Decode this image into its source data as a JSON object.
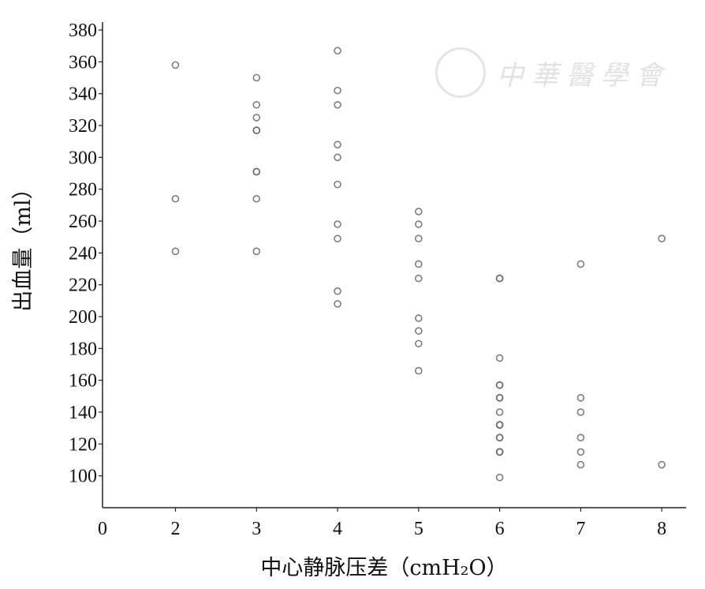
{
  "watermark": {
    "text": "中華醫學會"
  },
  "chart_data": {
    "type": "scatter",
    "title": "",
    "xlabel": "中心静脉压差（cmH₂O）",
    "ylabel": "出血量（ml）",
    "xlim": [
      1.1,
      8.3
    ],
    "ylim": [
      80,
      380
    ],
    "x_origin_label": "0",
    "xticks": [
      2,
      3,
      4,
      5,
      6,
      7,
      8
    ],
    "yticks": [
      100,
      120,
      140,
      160,
      180,
      200,
      220,
      240,
      260,
      280,
      300,
      320,
      340,
      360,
      380
    ],
    "grid": false,
    "marker_color": "#666666",
    "points": [
      [
        2,
        358
      ],
      [
        2,
        274
      ],
      [
        2,
        241
      ],
      [
        3,
        350
      ],
      [
        3,
        333
      ],
      [
        3,
        325
      ],
      [
        3,
        317
      ],
      [
        3,
        317
      ],
      [
        3,
        291
      ],
      [
        3,
        291
      ],
      [
        3,
        274
      ],
      [
        3,
        241
      ],
      [
        4,
        367
      ],
      [
        4,
        342
      ],
      [
        4,
        333
      ],
      [
        4,
        308
      ],
      [
        4,
        300
      ],
      [
        4,
        283
      ],
      [
        4,
        258
      ],
      [
        4,
        249
      ],
      [
        4,
        216
      ],
      [
        4,
        208
      ],
      [
        5,
        266
      ],
      [
        5,
        258
      ],
      [
        5,
        249
      ],
      [
        5,
        233
      ],
      [
        5,
        224
      ],
      [
        5,
        199
      ],
      [
        5,
        191
      ],
      [
        5,
        183
      ],
      [
        5,
        166
      ],
      [
        6,
        224
      ],
      [
        6,
        224
      ],
      [
        6,
        174
      ],
      [
        6,
        157
      ],
      [
        6,
        157
      ],
      [
        6,
        149
      ],
      [
        6,
        149
      ],
      [
        6,
        140
      ],
      [
        6,
        132
      ],
      [
        6,
        132
      ],
      [
        6,
        132
      ],
      [
        6,
        124
      ],
      [
        6,
        124
      ],
      [
        6,
        115
      ],
      [
        6,
        115
      ],
      [
        6,
        115
      ],
      [
        6,
        99
      ],
      [
        7,
        233
      ],
      [
        7,
        149
      ],
      [
        7,
        140
      ],
      [
        7,
        124
      ],
      [
        7,
        115
      ],
      [
        7,
        107
      ],
      [
        8,
        249
      ],
      [
        8,
        107
      ]
    ]
  }
}
